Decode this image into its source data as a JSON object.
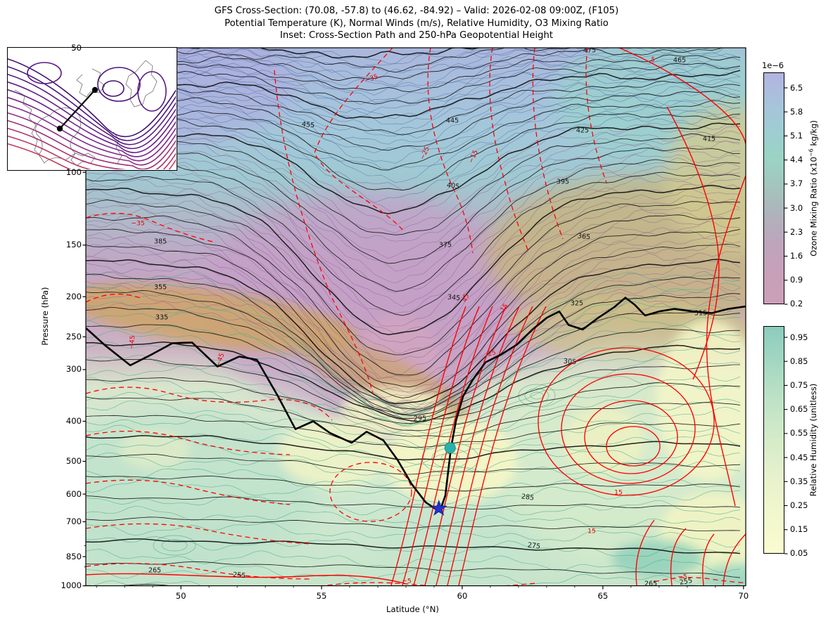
{
  "header": {
    "title_line1": "GFS Cross-Section: (70.08, -57.8) to (46.62, -84.92) – Valid: 2026-02-08 09:00Z, (F105)",
    "title_line2": "Potential Temperature (K), Normal Winds (m/s), Relative Humidity, O3 Mixing Ratio",
    "title_line3": "Inset: Cross-Section Path and 250-hPa Geopotential Height"
  },
  "colorbars": {
    "ozone": {
      "offset_label": "1e−6",
      "ticks": [
        "6.5",
        "5.8",
        "5.1",
        "4.4",
        "3.7",
        "3.0",
        "2.3",
        "1.6",
        "0.9",
        "0.2"
      ],
      "label_prefix": "Ozone Mixing Ratio (x10",
      "label_sup": "−6",
      "label_suffix": " kg/kg)",
      "gradient": [
        "#b2b4e1",
        "#a8c2dc",
        "#9ecdd2",
        "#9bd3c4",
        "#a4c4bc",
        "#b0b1bb",
        "#bfa4bc",
        "#c9a0ba",
        "#cb9fb7"
      ]
    },
    "rh": {
      "ticks": [
        "0.95",
        "0.85",
        "0.75",
        "0.65",
        "0.55",
        "0.45",
        "0.35",
        "0.25",
        "0.15",
        "0.05"
      ],
      "label": "Relative Humidity (unitless)",
      "gradient": [
        "#8cccbe",
        "#a5d8c2",
        "#bfe3c6",
        "#d5ebc9",
        "#e6f2cc",
        "#f2f7cd",
        "#fafbd0"
      ]
    }
  },
  "chart_data": {
    "type": "contour",
    "title": "GFS Cross-Section: (70.08, -57.8) to (46.62, -84.92) – Valid: 2026-02-08 09:00Z, (F105)",
    "fields": "Potential Temperature (K), Normal Winds (m/s), Relative Humidity, O3 Mixing Ratio",
    "inset_title": "Cross-Section Path and 250-hPa Geopotential Height",
    "section_endpoints": {
      "start": [
        70.08,
        -57.8
      ],
      "end": [
        46.62,
        -84.92
      ]
    },
    "x_axis": {
      "label": "Latitude (°N)",
      "range": [
        46.62,
        70.08
      ],
      "ticks": [
        50,
        55,
        60,
        65,
        70
      ]
    },
    "y_axis": {
      "label": "Pressure (hPa)",
      "scale": "log",
      "range": [
        50,
        1000
      ],
      "ticks": [
        50,
        100,
        150,
        200,
        250,
        300,
        400,
        500,
        600,
        700,
        850,
        1000
      ],
      "minor_ticks": [
        60,
        70,
        80,
        90,
        800,
        900
      ]
    },
    "theta_labels": [
      {
        "value": "475",
        "lat": 64.53,
        "p": 50.8,
        "rot": 0
      },
      {
        "value": "465",
        "lat": 67.73,
        "p": 53.6,
        "rot": 0
      },
      {
        "value": "455",
        "lat": 54.52,
        "p": 76.8,
        "rot": 6
      },
      {
        "value": "445",
        "lat": 59.65,
        "p": 75.0,
        "rot": 0
      },
      {
        "value": "425",
        "lat": 64.28,
        "p": 79.4,
        "rot": 0
      },
      {
        "value": "415",
        "lat": 68.78,
        "p": 83.2,
        "rot": 0
      },
      {
        "value": "405",
        "lat": 59.68,
        "p": 108.0,
        "rot": 8
      },
      {
        "value": "395",
        "lat": 63.58,
        "p": 105.4,
        "rot": 0
      },
      {
        "value": "385",
        "lat": 49.27,
        "p": 147.0,
        "rot": 0
      },
      {
        "value": "375",
        "lat": 59.4,
        "p": 150.2,
        "rot": 0
      },
      {
        "value": "365",
        "lat": 64.33,
        "p": 143.4,
        "rot": 6
      },
      {
        "value": "355",
        "lat": 49.27,
        "p": 190.0,
        "rot": 0
      },
      {
        "value": "345",
        "lat": 59.7,
        "p": 201.5,
        "rot": 6
      },
      {
        "value": "335",
        "lat": 49.32,
        "p": 225.0,
        "rot": 0
      },
      {
        "value": "325",
        "lat": 64.08,
        "p": 207.4,
        "rot": 0
      },
      {
        "value": "315",
        "lat": 68.48,
        "p": 219.4,
        "rot": 0
      },
      {
        "value": "305",
        "lat": 63.83,
        "p": 287.5,
        "rot": 5
      },
      {
        "value": "295",
        "lat": 58.5,
        "p": 394.0,
        "rot": 0
      },
      {
        "value": "285",
        "lat": 62.33,
        "p": 611.0,
        "rot": 8
      },
      {
        "value": "275",
        "lat": 62.55,
        "p": 802.0,
        "rot": 8
      },
      {
        "value": "265",
        "lat": 49.07,
        "p": 918.0,
        "rot": 0
      },
      {
        "value": "265",
        "lat": 66.7,
        "p": 988.0,
        "rot": 0
      },
      {
        "value": "255",
        "lat": 52.07,
        "p": 943.0,
        "rot": 6
      },
      {
        "value": "255",
        "lat": 67.95,
        "p": 977.0,
        "rot": -10
      }
    ],
    "wind_labels": [
      {
        "value": "5",
        "lat": 66.78,
        "p": 53.4,
        "rot": 10,
        "dashed": false
      },
      {
        "value": "−35",
        "lat": 56.77,
        "p": 59.4,
        "rot": -20,
        "dashed": true
      },
      {
        "value": "−25",
        "lat": 58.68,
        "p": 90.0,
        "rot": -65,
        "dashed": true
      },
      {
        "value": "−15",
        "lat": 60.4,
        "p": 91.8,
        "rot": -65,
        "dashed": true
      },
      {
        "value": "−35",
        "lat": 48.47,
        "p": 133.0,
        "rot": 0,
        "dashed": true
      },
      {
        "value": "−45",
        "lat": 48.27,
        "p": 258.0,
        "rot": -85,
        "dashed": true
      },
      {
        "value": "−45",
        "lat": 51.4,
        "p": 284.0,
        "rot": -70,
        "dashed": true
      },
      {
        "value": "45",
        "lat": 60.12,
        "p": 201.5,
        "rot": -70,
        "dashed": false
      },
      {
        "value": "15",
        "lat": 61.5,
        "p": 212.5,
        "rot": -55,
        "dashed": false
      },
      {
        "value": "25",
        "lat": 61.05,
        "p": 274.6,
        "rot": -15,
        "dashed": false
      },
      {
        "value": "15",
        "lat": 65.55,
        "p": 595.0,
        "rot": 0,
        "dashed": false
      },
      {
        "value": "15",
        "lat": 64.6,
        "p": 739.0,
        "rot": 0,
        "dashed": false
      },
      {
        "value": "−5",
        "lat": 58.02,
        "p": 975.0,
        "rot": 0,
        "dashed": true
      },
      {
        "value": "−5",
        "lat": 67.83,
        "p": 952.0,
        "rot": 0,
        "dashed": true
      }
    ],
    "markers": {
      "circle": {
        "lat": 59.57,
        "p": 464
      },
      "star": {
        "lat": 59.17,
        "p": 650
      }
    },
    "tropopause_line": [
      [
        46.62,
        238
      ],
      [
        47.3,
        262
      ],
      [
        48.2,
        293
      ],
      [
        48.95,
        276
      ],
      [
        49.7,
        259
      ],
      [
        50.4,
        258
      ],
      [
        51.3,
        295
      ],
      [
        52.07,
        279
      ],
      [
        52.7,
        284
      ],
      [
        53.45,
        348
      ],
      [
        54.07,
        418
      ],
      [
        54.7,
        400
      ],
      [
        55.3,
        427
      ],
      [
        56.07,
        451
      ],
      [
        56.6,
        424
      ],
      [
        57.2,
        445
      ],
      [
        57.7,
        496
      ],
      [
        58.2,
        567
      ],
      [
        58.7,
        628
      ],
      [
        59.2,
        662
      ],
      [
        59.4,
        605
      ],
      [
        59.6,
        464
      ],
      [
        59.78,
        398
      ],
      [
        60.03,
        348
      ],
      [
        60.38,
        317
      ],
      [
        60.83,
        288
      ],
      [
        61.38,
        276
      ],
      [
        61.95,
        261
      ],
      [
        62.5,
        240
      ],
      [
        63.0,
        225
      ],
      [
        63.45,
        217
      ],
      [
        63.78,
        234
      ],
      [
        64.28,
        240
      ],
      [
        64.83,
        225
      ],
      [
        65.4,
        212
      ],
      [
        65.8,
        201
      ],
      [
        66.13,
        209
      ],
      [
        66.5,
        222
      ],
      [
        67.0,
        217
      ],
      [
        67.54,
        214
      ],
      [
        68.2,
        217
      ],
      [
        68.88,
        219
      ],
      [
        69.45,
        214
      ],
      [
        70.08,
        211
      ]
    ],
    "colors": {
      "theta_contour": "#151515",
      "wind_contour": "#ff0000",
      "ozone_contour_blue": "#47659b",
      "ozone_contour_purple": "#8a5d8d",
      "rh_contour": "#4fae8c",
      "tropopause": "#000000",
      "marker_circle": "#29b2ac",
      "marker_star": "#2433cc"
    }
  }
}
